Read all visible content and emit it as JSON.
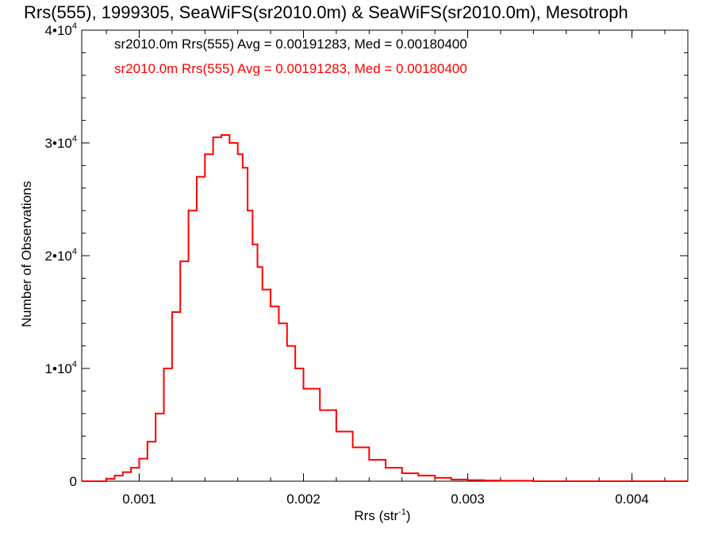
{
  "chart_data": {
    "type": "line",
    "title": "Rrs(555), 1999305, SeaWiFS(sr2010.0m) & SeaWiFS(sr2010.0m), Mesotroph",
    "xlabel": "Rrs (str",
    "xlabel_sup": "-1",
    "xlabel_close": ")",
    "ylabel": "Number of Observations",
    "xlim": [
      0.00065,
      0.00434
    ],
    "ylim": [
      0,
      40000
    ],
    "grid": false,
    "x_ticks": [
      {
        "value": 0.001,
        "label": "0.001"
      },
      {
        "value": 0.002,
        "label": "0.002"
      },
      {
        "value": 0.003,
        "label": "0.003"
      },
      {
        "value": 0.004,
        "label": "0.004"
      }
    ],
    "y_ticks": [
      {
        "value": 0,
        "mant": "0",
        "exp": ""
      },
      {
        "value": 10000,
        "mant": "1•10",
        "exp": "4"
      },
      {
        "value": 20000,
        "mant": "2•10",
        "exp": "4"
      },
      {
        "value": 30000,
        "mant": "3•10",
        "exp": "4"
      },
      {
        "value": 40000,
        "mant": "4•10",
        "exp": "4"
      }
    ],
    "x_minor_step": 0.0002,
    "y_minor_step": 2000,
    "annotations": [
      {
        "text": "sr2010.0m Rrs(555) Avg = 0.00191283, Med = 0.00180400",
        "color": "#000000"
      },
      {
        "text": "sr2010.0m Rrs(555) Avg = 0.00191283, Med = 0.00180400",
        "color": "#ff0000"
      }
    ],
    "series": [
      {
        "color": "#ff0000",
        "step": true,
        "x": [
          0.00065,
          0.0008,
          0.00085,
          0.0009,
          0.00095,
          0.001,
          0.00105,
          0.0011,
          0.00115,
          0.0012,
          0.00125,
          0.0013,
          0.00135,
          0.0014,
          0.00145,
          0.0015,
          0.00155,
          0.0016,
          0.00163,
          0.00166,
          0.00169,
          0.00172,
          0.00175,
          0.0018,
          0.00185,
          0.0019,
          0.00195,
          0.002,
          0.0021,
          0.0022,
          0.0023,
          0.0024,
          0.0025,
          0.0026,
          0.0027,
          0.0028,
          0.0029,
          0.003,
          0.0031,
          0.0032,
          0.0034,
          0.0036,
          0.0038,
          0.004,
          0.0042,
          0.00434
        ],
        "y": [
          0,
          200,
          500,
          800,
          1200,
          2000,
          3500,
          6000,
          10000,
          15000,
          19500,
          24000,
          27000,
          29000,
          30500,
          30700,
          30000,
          29000,
          27800,
          24000,
          21000,
          19000,
          17000,
          15500,
          14000,
          12000,
          10000,
          8200,
          6300,
          4400,
          3000,
          1900,
          1200,
          700,
          500,
          300,
          150,
          100,
          60,
          40,
          0,
          0,
          0,
          0,
          0,
          0
        ]
      }
    ]
  }
}
